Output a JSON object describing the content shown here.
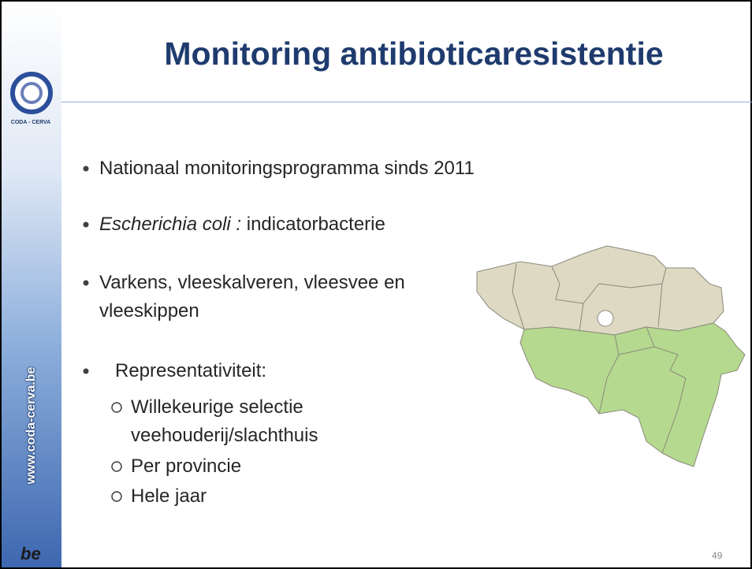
{
  "slide": {
    "title": "Monitoring antibioticaresistentie",
    "logo_text": "CODA - CERVA",
    "sidebar_url": "www.coda-cerva.be",
    "footer_logo": "be",
    "bullets": [
      {
        "text": "Nationaal monitoringsprogramma sinds 2011"
      },
      {
        "italic": "Escherichia coli :",
        "text": " indicatorbacterie"
      },
      {
        "text": "Varkens, vleeskalveren, vleesvee en vleeskippen"
      },
      {
        "text": "Representativiteit:",
        "sub": [
          "Willekeurige selectie veehouderij/slachthuis",
          "Per provincie",
          "Hele jaar"
        ]
      }
    ],
    "page_number": "49"
  }
}
